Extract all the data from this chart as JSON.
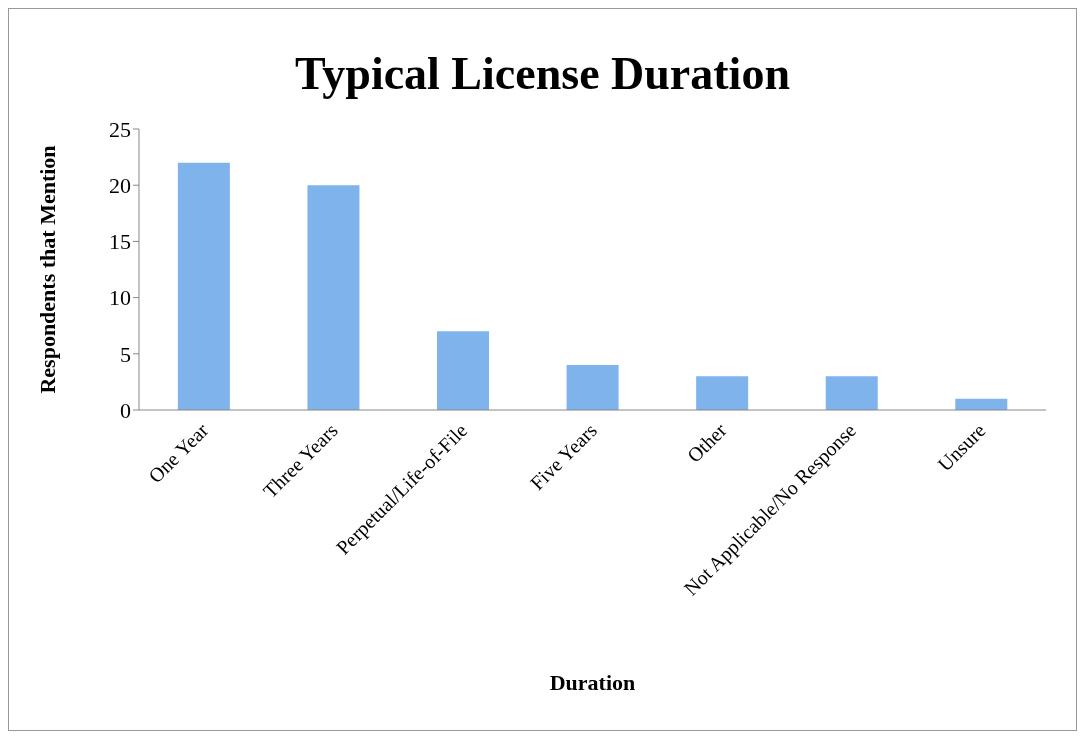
{
  "chart_data": {
    "type": "bar",
    "title": "Typical License Duration",
    "xlabel": "Duration",
    "ylabel": "Respondents that Mention",
    "categories": [
      "One Year",
      "Three Years",
      "Perpetual/Life-of-File",
      "Five Years",
      "Other",
      "Not Applicable/No Response",
      "Unsure"
    ],
    "values": [
      22,
      20,
      7,
      4,
      3,
      3,
      1
    ],
    "color": "#7fb3ec",
    "ylim": [
      0,
      25
    ],
    "yticks": [
      0,
      5,
      10,
      15,
      20,
      25
    ],
    "grid": false
  }
}
